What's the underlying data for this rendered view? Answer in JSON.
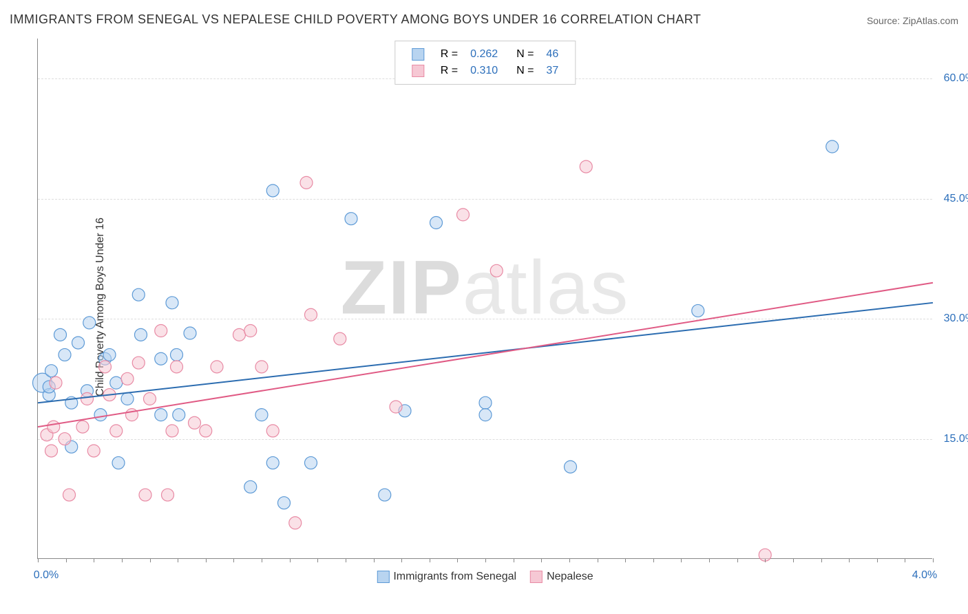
{
  "title": "IMMIGRANTS FROM SENEGAL VS NEPALESE CHILD POVERTY AMONG BOYS UNDER 16 CORRELATION CHART",
  "source_label": "Source: ZipAtlas.com",
  "watermark": {
    "bold": "ZIP",
    "light": "atlas"
  },
  "chart": {
    "type": "scatter-with-trend",
    "background_color": "#ffffff",
    "grid_color": "#dddddd",
    "axis_color": "#888888",
    "text_color": "#333333",
    "value_color": "#2c6fbb",
    "xlim": [
      0.0,
      4.0
    ],
    "ylim": [
      0.0,
      65.0
    ],
    "x_ticks": [
      0.0,
      2.0,
      4.0
    ],
    "x_tick_labels": [
      "0.0%",
      "",
      "4.0%"
    ],
    "y_ticks": [
      15.0,
      30.0,
      45.0,
      60.0
    ],
    "y_tick_labels": [
      "15.0%",
      "30.0%",
      "45.0%",
      "60.0%"
    ],
    "y_axis_title": "Child Poverty Among Boys Under 16",
    "marker_radius": 9,
    "marker_stroke_width": 1.2,
    "line_width": 2,
    "series": [
      {
        "name": "Immigrants from Senegal",
        "fill": "#b8d4f0",
        "stroke": "#5d9ad6",
        "line_color": "#2b6cb0",
        "fill_opacity": 0.55,
        "R": "0.262",
        "N": "46",
        "trend": {
          "x1": 0.0,
          "y1": 19.5,
          "x2": 4.0,
          "y2": 32.0
        },
        "points": [
          [
            0.02,
            22.0,
            14
          ],
          [
            0.05,
            20.5
          ],
          [
            0.05,
            21.5
          ],
          [
            0.06,
            23.5
          ],
          [
            0.1,
            28.0
          ],
          [
            0.12,
            25.5
          ],
          [
            0.15,
            19.5
          ],
          [
            0.15,
            14.0
          ],
          [
            0.18,
            27.0
          ],
          [
            0.22,
            21.0
          ],
          [
            0.23,
            29.5
          ],
          [
            0.28,
            18.0
          ],
          [
            0.3,
            25.0
          ],
          [
            0.32,
            25.5
          ],
          [
            0.35,
            22.0
          ],
          [
            0.36,
            12.0
          ],
          [
            0.4,
            20.0
          ],
          [
            0.45,
            33.0
          ],
          [
            0.46,
            28.0
          ],
          [
            0.55,
            25.0
          ],
          [
            0.55,
            18.0
          ],
          [
            0.6,
            32.0
          ],
          [
            0.62,
            25.5
          ],
          [
            0.63,
            18.0
          ],
          [
            0.68,
            28.2
          ],
          [
            0.95,
            9.0
          ],
          [
            1.0,
            18.0
          ],
          [
            1.05,
            12.0
          ],
          [
            1.05,
            46.0
          ],
          [
            1.1,
            7.0
          ],
          [
            1.22,
            12.0
          ],
          [
            1.4,
            42.5
          ],
          [
            1.55,
            8.0
          ],
          [
            1.64,
            18.5
          ],
          [
            1.78,
            42.0
          ],
          [
            2.0,
            19.5
          ],
          [
            2.0,
            18.0
          ],
          [
            2.38,
            11.5
          ],
          [
            2.95,
            31.0
          ],
          [
            3.55,
            51.5
          ]
        ]
      },
      {
        "name": "Nepalese",
        "fill": "#f6c8d4",
        "stroke": "#e88aa4",
        "line_color": "#e05a84",
        "fill_opacity": 0.55,
        "R": "0.310",
        "N": "37",
        "trend": {
          "x1": 0.0,
          "y1": 16.5,
          "x2": 4.0,
          "y2": 34.5
        },
        "points": [
          [
            0.04,
            15.5
          ],
          [
            0.06,
            13.5
          ],
          [
            0.07,
            16.5
          ],
          [
            0.08,
            22.0
          ],
          [
            0.12,
            15.0
          ],
          [
            0.14,
            8.0
          ],
          [
            0.2,
            16.5
          ],
          [
            0.22,
            20.0
          ],
          [
            0.25,
            13.5
          ],
          [
            0.3,
            24.0
          ],
          [
            0.32,
            20.5
          ],
          [
            0.35,
            16.0
          ],
          [
            0.4,
            22.5
          ],
          [
            0.42,
            18.0
          ],
          [
            0.45,
            24.5
          ],
          [
            0.48,
            8.0
          ],
          [
            0.5,
            20.0
          ],
          [
            0.55,
            28.5
          ],
          [
            0.58,
            8.0
          ],
          [
            0.6,
            16.0
          ],
          [
            0.62,
            24.0
          ],
          [
            0.7,
            17.0
          ],
          [
            0.75,
            16.0
          ],
          [
            0.8,
            24.0
          ],
          [
            0.9,
            28.0
          ],
          [
            0.95,
            28.5
          ],
          [
            1.0,
            24.0
          ],
          [
            1.05,
            16.0
          ],
          [
            1.15,
            4.5
          ],
          [
            1.2,
            47.0
          ],
          [
            1.22,
            30.5
          ],
          [
            1.35,
            27.5
          ],
          [
            1.6,
            19.0
          ],
          [
            1.9,
            43.0
          ],
          [
            2.05,
            36.0
          ],
          [
            2.45,
            49.0
          ],
          [
            3.25,
            0.5
          ]
        ]
      }
    ],
    "legend_bottom": [
      {
        "label": "Immigrants from Senegal",
        "fill": "#b8d4f0",
        "stroke": "#5d9ad6"
      },
      {
        "label": "Nepalese",
        "fill": "#f6c8d4",
        "stroke": "#e88aa4"
      }
    ]
  }
}
